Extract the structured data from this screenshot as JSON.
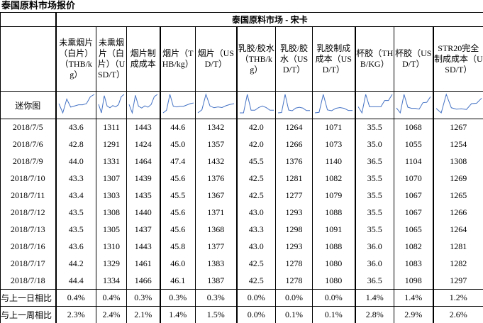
{
  "title": "泰国原料市场报价",
  "table": {
    "group_header": "泰国原料市场 - 宋卡",
    "columns": [
      "未熏烟片（白片）（THB/kg）",
      "未熏烟片（白片）（USD/T）",
      "烟片制成成本",
      "烟片（THB/kg）",
      "烟片（USD/T）",
      "乳胶/胶水（THB/kg）",
      "乳胶/胶水（USD/T）",
      "乳胶制成成本（USD/T）",
      "杯胶（THB/KG）",
      "杯胶（USD/T）",
      "STR20完全制成成本（USD/T）"
    ],
    "sparkline_label": "迷你图",
    "rows": [
      [
        "2018/7/5",
        "43.6",
        "1311",
        "1443",
        "44.6",
        "1342",
        "42.0",
        "1264",
        "1071",
        "35.5",
        "1068",
        "1267"
      ],
      [
        "2018/7/6",
        "42.8",
        "1291",
        "1424",
        "45.0",
        "1357",
        "42.0",
        "1266",
        "1073",
        "35.0",
        "1055",
        "1254"
      ],
      [
        "2018/7/9",
        "44.0",
        "1331",
        "1464",
        "47.4",
        "1432",
        "45.5",
        "1376",
        "1140",
        "36.5",
        "1104",
        "1308"
      ],
      [
        "2018/7/10",
        "43.3",
        "1307",
        "1439",
        "45.6",
        "1376",
        "42.5",
        "1281",
        "1082",
        "35.5",
        "1070",
        "1269"
      ],
      [
        "2018/7/11",
        "43.4",
        "1303",
        "1435",
        "45.5",
        "1367",
        "42.5",
        "1277",
        "1079",
        "35.5",
        "1067",
        "1265"
      ],
      [
        "2018/7/12",
        "43.5",
        "1308",
        "1440",
        "45.6",
        "1371",
        "43.0",
        "1293",
        "1088",
        "35.5",
        "1067",
        "1266"
      ],
      [
        "2018/7/13",
        "43.5",
        "1305",
        "1437",
        "45.6",
        "1368",
        "43.3",
        "1298",
        "1091",
        "35.5",
        "1065",
        "1264"
      ],
      [
        "2018/7/16",
        "43.6",
        "1310",
        "1443",
        "45.8",
        "1377",
        "43.0",
        "1293",
        "1088",
        "36.0",
        "1082",
        "1281"
      ],
      [
        "2018/7/17",
        "44.2",
        "1329",
        "1461",
        "46.0",
        "1383",
        "42.5",
        "1278",
        "1080",
        "36.0",
        "1083",
        "1282"
      ],
      [
        "2018/7/18",
        "44.4",
        "1334",
        "1466",
        "46.1",
        "1387",
        "42.5",
        "1278",
        "1080",
        "36.5",
        "1098",
        "1297"
      ]
    ],
    "summary_rows": [
      [
        "与上一日相比",
        "0.4%",
        "0.4%",
        "0.3%",
        "0.3%",
        "0.3%",
        "0.0%",
        "0.0%",
        "0.0%",
        "1.4%",
        "1.4%",
        "1.2%"
      ],
      [
        "与上一周相比",
        "2.3%",
        "2.4%",
        "2.1%",
        "1.4%",
        "1.5%",
        "0.0%",
        "0.1%",
        "0.1%",
        "2.8%",
        "2.9%",
        "2.6%"
      ]
    ]
  }
}
